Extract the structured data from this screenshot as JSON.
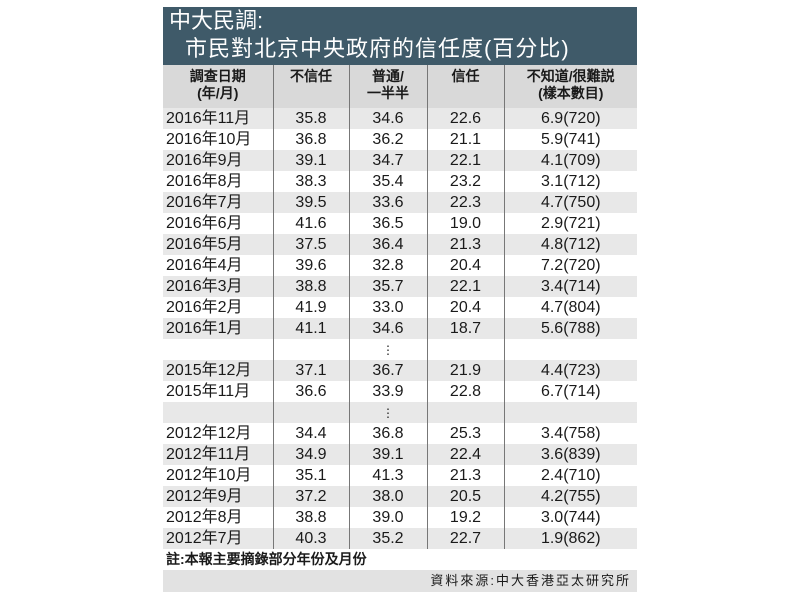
{
  "title": {
    "line1": "中大民調:",
    "line2": "市民對北京中央政府的信任度(百分比)"
  },
  "columns": [
    "調查日期\n(年/月)",
    "不信任",
    "普通/\n一半半",
    "信任",
    "不知道/很難説\n(樣本數目)"
  ],
  "rows": [
    [
      "2016年11月",
      "35.8",
      "34.6",
      "22.6",
      "6.9(720)"
    ],
    [
      "2016年10月",
      "36.8",
      "36.2",
      "21.1",
      "5.9(741)"
    ],
    [
      "2016年9月",
      "39.1",
      "34.7",
      "22.1",
      "4.1(709)"
    ],
    [
      "2016年8月",
      "38.3",
      "35.4",
      "23.2",
      "3.1(712)"
    ],
    [
      "2016年7月",
      "39.5",
      "33.6",
      "22.3",
      "4.7(750)"
    ],
    [
      "2016年6月",
      "41.6",
      "36.5",
      "19.0",
      "2.9(721)"
    ],
    [
      "2016年5月",
      "37.5",
      "36.4",
      "21.3",
      "4.8(712)"
    ],
    [
      "2016年4月",
      "39.6",
      "32.8",
      "20.4",
      "7.2(720)"
    ],
    [
      "2016年3月",
      "38.8",
      "35.7",
      "22.1",
      "3.4(714)"
    ],
    [
      "2016年2月",
      "41.9",
      "33.0",
      "20.4",
      "4.7(804)"
    ],
    [
      "2016年1月",
      "41.1",
      "34.6",
      "18.7",
      "5.6(788)"
    ],
    [
      "",
      "",
      "⋮",
      "",
      ""
    ],
    [
      "2015年12月",
      "37.1",
      "36.7",
      "21.9",
      "4.4(723)"
    ],
    [
      "2015年11月",
      "36.6",
      "33.9",
      "22.8",
      "6.7(714)"
    ],
    [
      "",
      "",
      "⋮",
      "",
      ""
    ],
    [
      "2012年12月",
      "34.4",
      "36.8",
      "25.3",
      "3.4(758)"
    ],
    [
      "2012年11月",
      "34.9",
      "39.1",
      "22.4",
      "3.6(839)"
    ],
    [
      "2012年10月",
      "35.1",
      "41.3",
      "21.3",
      "2.4(710)"
    ],
    [
      "2012年9月",
      "37.2",
      "38.0",
      "20.5",
      "4.2(755)"
    ],
    [
      "2012年8月",
      "38.8",
      "39.0",
      "19.2",
      "3.0(744)"
    ],
    [
      "2012年7月",
      "40.3",
      "35.2",
      "22.7",
      "1.9(862)"
    ]
  ],
  "note": "註:本報主要摘錄部分年份及月份",
  "source": "資料來源:中大香港亞太研究所",
  "colors": {
    "title_bg": "#3f5a69",
    "header_bg": "#d9d9d9",
    "stripe": "#e8e8e8"
  }
}
